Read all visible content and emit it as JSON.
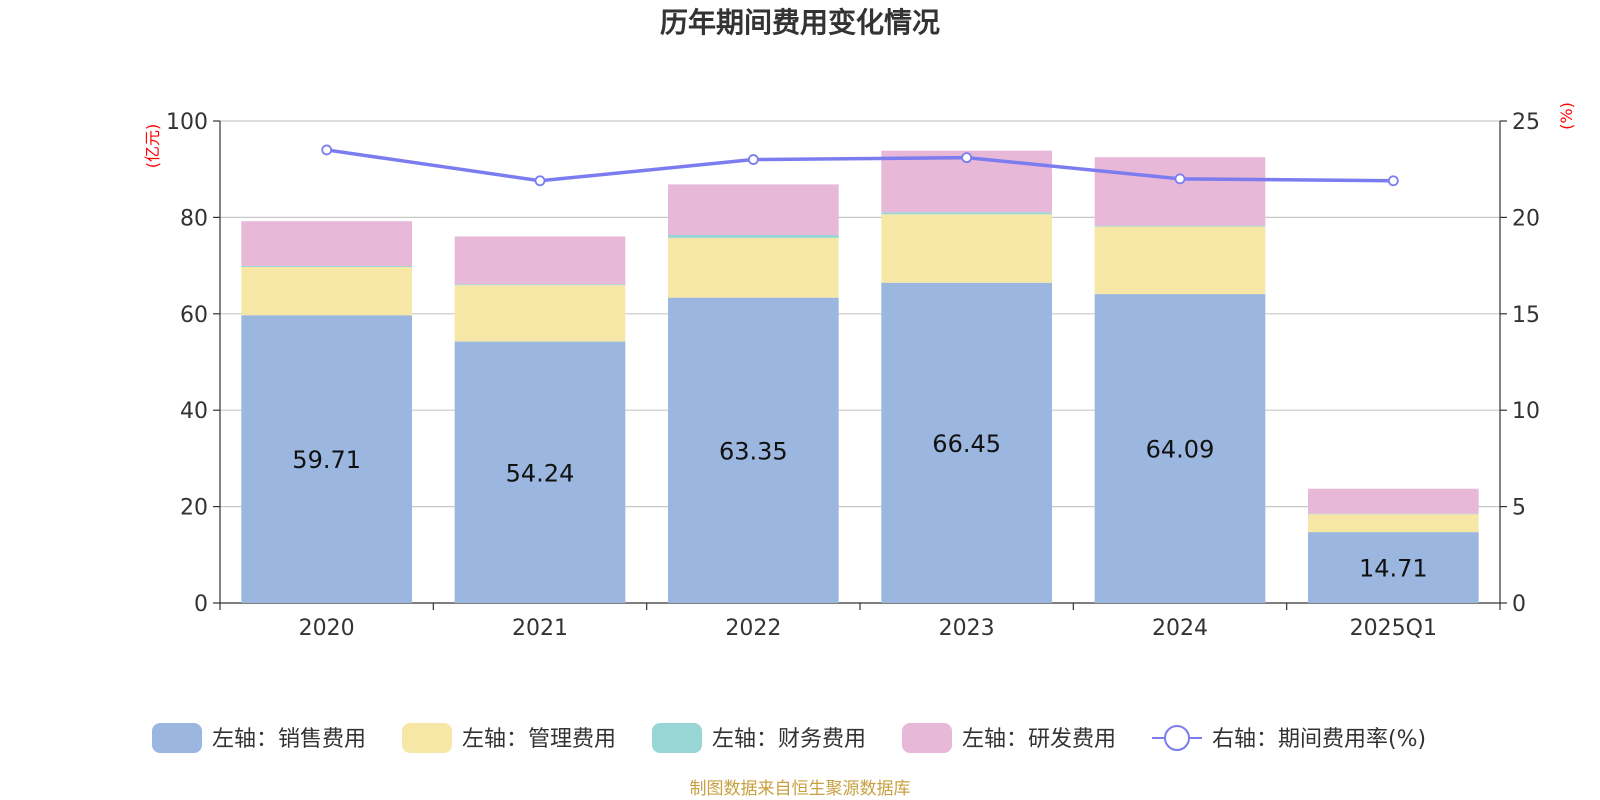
{
  "chart_data": {
    "type": "bar",
    "stacked": true,
    "title": "历年期间费用变化情况",
    "categories": [
      "2020",
      "2021",
      "2022",
      "2023",
      "2024",
      "2025Q1"
    ],
    "left_axis": {
      "unit": "(亿元)",
      "ylim": [
        0,
        100
      ],
      "ticks": [
        "0",
        "20",
        "40",
        "60",
        "80",
        "100"
      ]
    },
    "right_axis": {
      "unit": "(%)",
      "ylim": [
        0,
        25
      ],
      "ticks": [
        "0",
        "5",
        "10",
        "15",
        "20",
        "25"
      ]
    },
    "series": [
      {
        "name": "左轴：销售费用",
        "axis": "left",
        "color": "#9bb7e0",
        "values": [
          59.71,
          54.24,
          63.35,
          66.45,
          64.09,
          14.71
        ],
        "labels": [
          "59.71",
          "54.24",
          "63.35",
          "66.45",
          "64.09",
          "14.71"
        ]
      },
      {
        "name": "左轴：管理费用",
        "axis": "left",
        "color": "#f7e7a7",
        "values": [
          10.0,
          11.7,
          12.4,
          14.2,
          14.0,
          3.7
        ]
      },
      {
        "name": "左轴：财务费用",
        "axis": "left",
        "color": "#98d5d5",
        "values": [
          0.2,
          0.2,
          0.6,
          0.4,
          0.2,
          0.1
        ]
      },
      {
        "name": "左轴：研发费用",
        "axis": "left",
        "color": "#e8b8d8",
        "values": [
          9.3,
          9.9,
          10.5,
          12.8,
          14.2,
          5.2
        ]
      }
    ],
    "line_series": {
      "name": "右轴：期间费用率(%)",
      "axis": "right",
      "color": "#7b7cef",
      "values": [
        23.5,
        21.9,
        23.0,
        23.1,
        22.0,
        21.9
      ]
    },
    "source": "制图数据来自恒生聚源数据库"
  }
}
